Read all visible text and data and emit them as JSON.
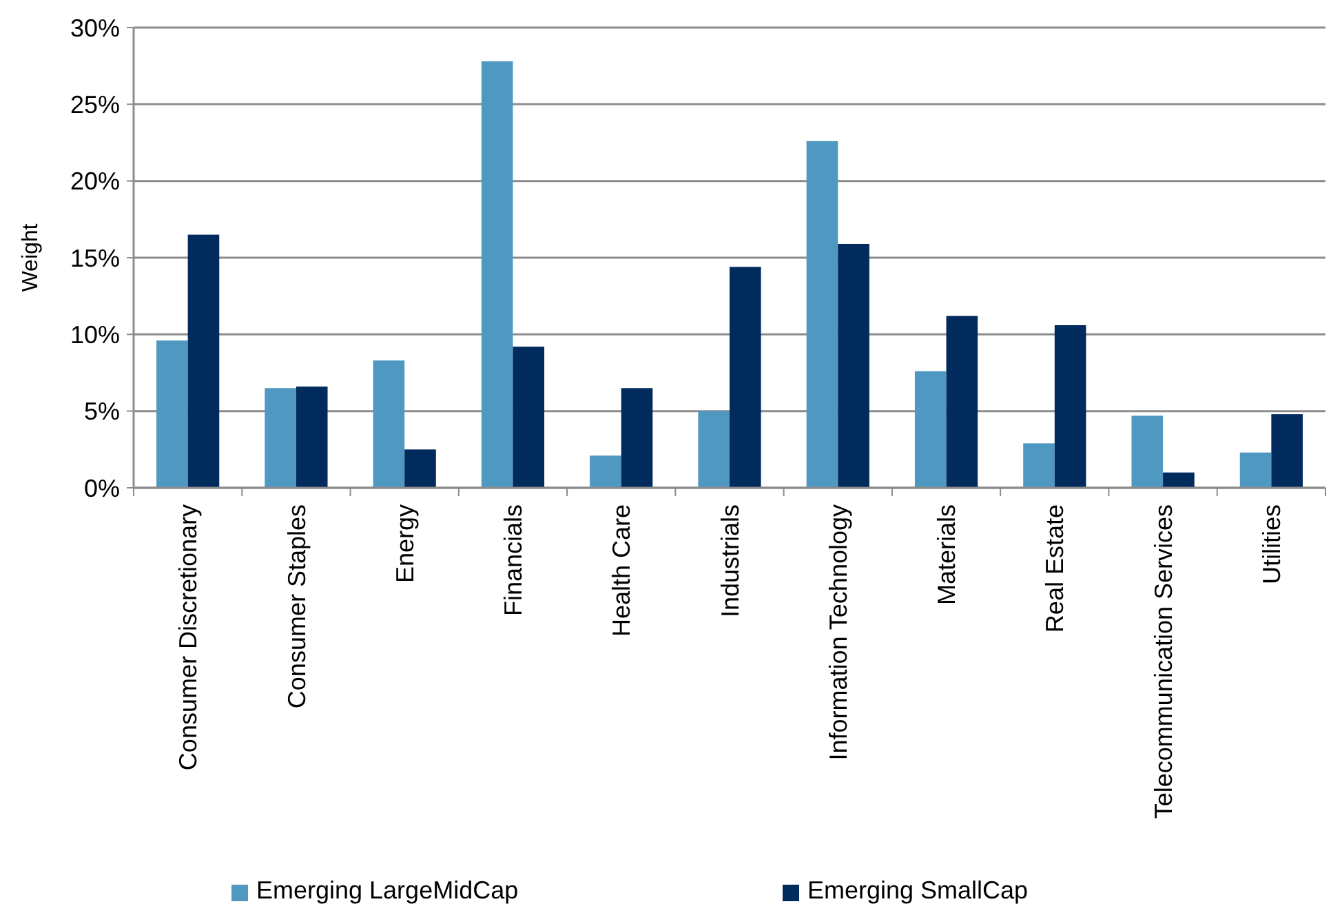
{
  "chart_data": {
    "type": "bar",
    "ylabel": "Weight",
    "categories": [
      "Consumer Discretionary",
      "Consumer Staples",
      "Energy",
      "Financials",
      "Health Care",
      "Industrials",
      "Information Technology",
      "Materials",
      "Real Estate",
      "Telecommunication Services",
      "Utilities"
    ],
    "series": [
      {
        "name": "Emerging LargeMidCap",
        "color": "#4f98c1",
        "values": [
          9.6,
          6.5,
          8.3,
          27.8,
          2.1,
          5.0,
          22.6,
          7.6,
          2.9,
          4.7,
          2.3
        ]
      },
      {
        "name": "Emerging SmallCap",
        "color": "#002b5c",
        "values": [
          16.5,
          6.6,
          2.5,
          9.2,
          6.5,
          14.4,
          15.9,
          11.2,
          10.6,
          1.0,
          4.8
        ]
      }
    ],
    "ylim": [
      0,
      30
    ],
    "yticks": [
      {
        "value": 0,
        "label": "0%"
      },
      {
        "value": 5,
        "label": "5%"
      },
      {
        "value": 10,
        "label": "10%"
      },
      {
        "value": 15,
        "label": "15%"
      },
      {
        "value": 20,
        "label": "20%"
      },
      {
        "value": 25,
        "label": "25%"
      },
      {
        "value": 30,
        "label": "30%"
      }
    ],
    "grid": "y",
    "legend": "bottom"
  }
}
